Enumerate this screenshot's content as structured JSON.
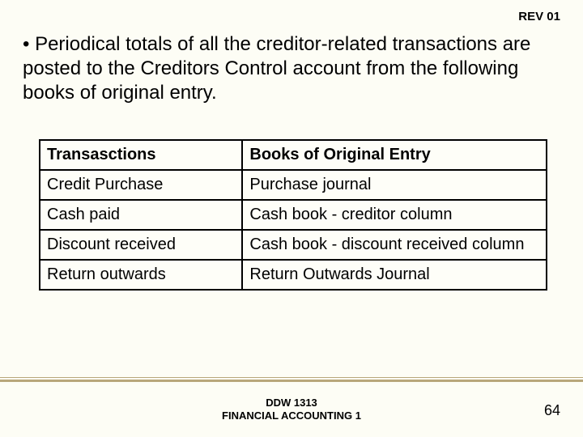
{
  "header": {
    "rev": "REV 01"
  },
  "bullet": "• Periodical totals of all the creditor-related transactions are posted to the Creditors Control account from the following books of original entry.",
  "table": {
    "headers": [
      "Transasctions",
      "Books of Original Entry"
    ],
    "rows": [
      [
        "Credit Purchase",
        "Purchase journal"
      ],
      [
        "Cash paid",
        "Cash book - creditor column"
      ],
      [
        "Discount received",
        "Cash book - discount received column"
      ],
      [
        "Return outwards",
        "Return Outwards Journal"
      ]
    ]
  },
  "footer": {
    "course_code": "DDW 1313",
    "course_name": "FINANCIAL ACCOUNTING 1",
    "page": "64"
  },
  "style": {
    "background": "#fdfdf5",
    "text_color": "#000000",
    "border_color": "#000000",
    "accent_line_color": "#b8a77a",
    "body_fontsize": 24,
    "table_fontsize": 20,
    "rev_fontsize": 15,
    "footer_fontsize": 13,
    "pagenum_fontsize": 18
  }
}
